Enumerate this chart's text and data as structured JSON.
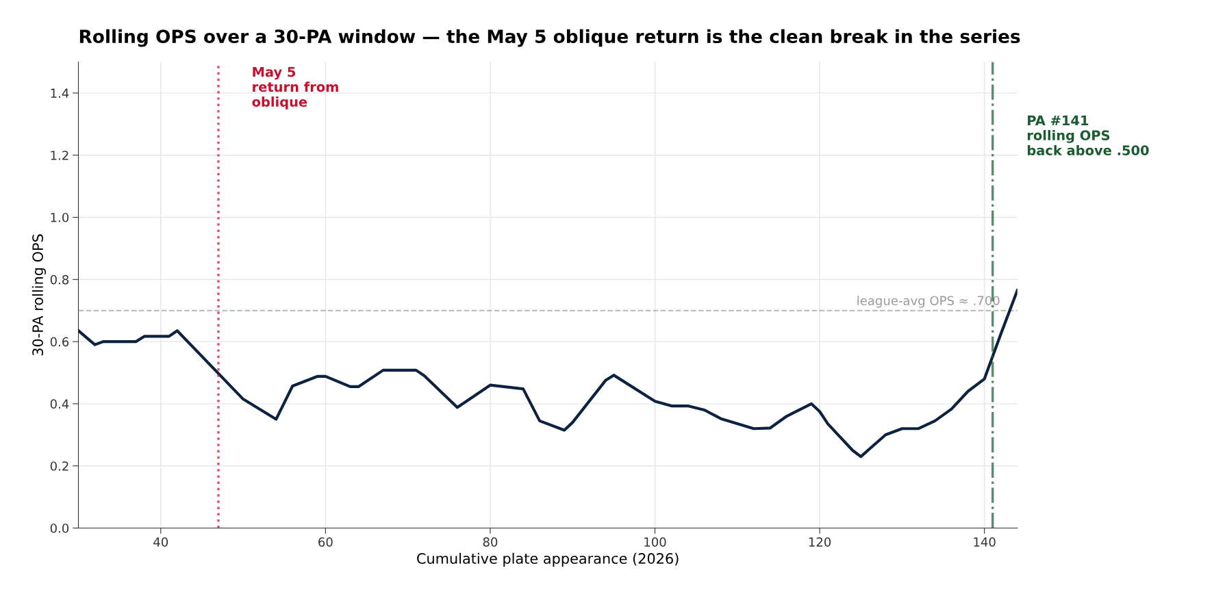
{
  "chart_data": {
    "type": "line",
    "title": "Rolling OPS over a 30-PA window — the May 5 oblique return is the clean break in the series",
    "xlabel": "Cumulative plate appearance (2026)",
    "ylabel": "30-PA rolling OPS",
    "x": [
      30,
      32,
      33,
      37,
      38,
      41,
      42,
      50,
      54,
      56,
      59,
      60,
      63,
      64,
      67,
      71,
      72,
      76,
      80,
      84,
      86,
      89,
      90,
      94,
      95,
      100,
      102,
      104,
      106,
      108,
      112,
      114,
      116,
      119,
      120,
      121,
      124,
      125,
      128,
      130,
      132,
      134,
      136,
      138,
      140,
      142,
      144
    ],
    "series": [
      {
        "color": "#0d2240",
        "values": [
          0.635,
          0.59,
          0.6,
          0.6,
          0.617,
          0.617,
          0.635,
          0.415,
          0.35,
          0.457,
          0.488,
          0.488,
          0.455,
          0.455,
          0.508,
          0.508,
          0.49,
          0.388,
          0.46,
          0.448,
          0.345,
          0.315,
          0.34,
          0.475,
          0.492,
          0.408,
          0.393,
          0.393,
          0.38,
          0.352,
          0.32,
          0.322,
          0.36,
          0.4,
          0.375,
          0.335,
          0.25,
          0.23,
          0.3,
          0.32,
          0.32,
          0.345,
          0.383,
          0.44,
          0.48,
          0.625,
          0.765
        ]
      }
    ],
    "xlim": [
      30,
      144
    ],
    "xticks": [
      40,
      60,
      80,
      100,
      120,
      140
    ],
    "ylim": [
      0,
      1.5
    ],
    "yticks": [
      {
        "value": 0,
        "label": "0.0"
      },
      {
        "value": 0.2,
        "label": "0.2"
      },
      {
        "value": 0.4,
        "label": "0.4"
      },
      {
        "value": 0.6,
        "label": "0.6"
      },
      {
        "value": 0.8,
        "label": "0.8"
      },
      {
        "value": 1.0,
        "label": "1.0"
      },
      {
        "value": 1.2,
        "label": "1.2"
      },
      {
        "value": 1.4,
        "label": "1.4"
      }
    ],
    "ref_lines": [
      {
        "axis": "x",
        "value": 47,
        "label": "May 5\nreturn from\noblique",
        "color": "#c8102e",
        "line_style": "dotted"
      },
      {
        "axis": "x",
        "value": 141,
        "label": "PA #141\nrolling OPS\nback above .500",
        "color": "#1a5c30",
        "line_style": "dashdot"
      },
      {
        "axis": "y",
        "value": 0.7,
        "label": "league-avg OPS ≈ .700",
        "color": "#999999",
        "line_style": "dashed"
      }
    ],
    "grid": true,
    "marker": "none",
    "line_style": "solid",
    "legend": false
  }
}
